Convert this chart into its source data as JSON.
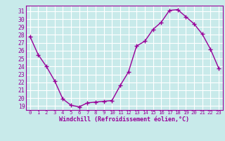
{
  "x": [
    0,
    1,
    2,
    3,
    4,
    5,
    6,
    7,
    8,
    9,
    10,
    11,
    12,
    13,
    14,
    15,
    16,
    17,
    18,
    19,
    20,
    21,
    22,
    23
  ],
  "y": [
    27.8,
    25.5,
    24.0,
    22.2,
    19.9,
    19.1,
    18.9,
    19.4,
    19.5,
    19.6,
    19.7,
    21.6,
    23.3,
    26.6,
    27.2,
    28.7,
    29.6,
    31.1,
    31.2,
    30.3,
    29.4,
    28.1,
    26.2,
    23.8
  ],
  "line_color": "#990099",
  "marker": "+",
  "marker_size": 4,
  "marker_linewidth": 1.0,
  "bg_color": "#c8eaea",
  "grid_color": "#ffffff",
  "xlabel": "Windchill (Refroidissement éolien,°C)",
  "yticks": [
    19,
    20,
    21,
    22,
    23,
    24,
    25,
    26,
    27,
    28,
    29,
    30,
    31
  ],
  "xticks": [
    0,
    1,
    2,
    3,
    4,
    5,
    6,
    7,
    8,
    9,
    10,
    11,
    12,
    13,
    14,
    15,
    16,
    17,
    18,
    19,
    20,
    21,
    22,
    23
  ],
  "ylim": [
    18.5,
    31.7
  ],
  "xlim": [
    -0.5,
    23.5
  ],
  "xlabel_color": "#990099",
  "tick_color": "#990099",
  "axis_color": "#990099",
  "line_width": 1.0
}
